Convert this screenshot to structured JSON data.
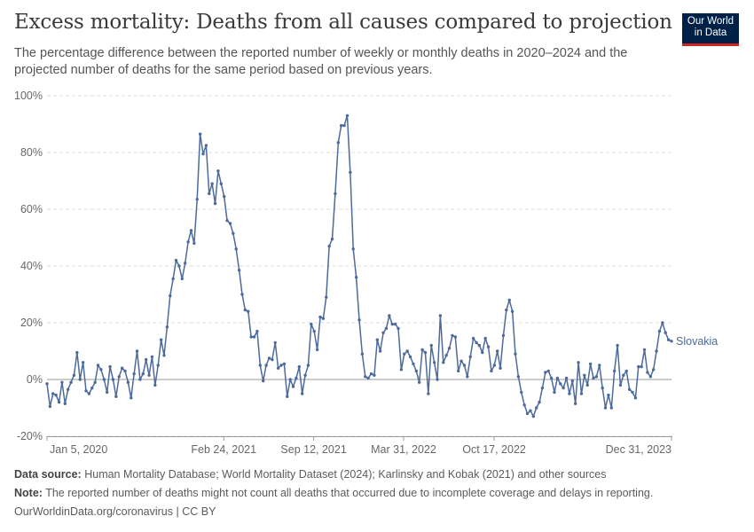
{
  "title": "Excess mortality: Deaths from all causes compared to projection",
  "subtitle": "The percentage difference between the reported number of weekly or monthly deaths in 2020–2024 and the projected number of deaths for the same period based on previous years.",
  "logo": {
    "line1": "Our World",
    "line2": "in Data"
  },
  "footer": {
    "source_label": "Data source:",
    "source_text": "Human Mortality Database; World Mortality Dataset (2024); Karlinsky and Kobak (2021) and other sources",
    "note_label": "Note:",
    "note_text": "The reported number of deaths might not count all deaths that occurred due to incomplete coverage and delays in reporting.",
    "credit": "OurWorldinData.org/coronavirus | CC BY"
  },
  "colors": {
    "series": "#4c6a9c",
    "grid": "#dddddd",
    "zero": "#999999"
  },
  "chart_data": {
    "type": "line",
    "ylim": [
      -20,
      100
    ],
    "yticks": [
      -20,
      0,
      20,
      40,
      60,
      80,
      100
    ],
    "ytick_labels": [
      "-20%",
      "0%",
      "20%",
      "40%",
      "60%",
      "80%",
      "100%"
    ],
    "xtick_labels": [
      "Jan 5, 2020",
      "Feb 24, 2021",
      "Sep 12, 2021",
      "Mar 31, 2022",
      "Oct 17, 2022",
      "Dec 31, 2023"
    ],
    "grid": "horizontal dashed",
    "series": [
      {
        "name": "Slovakia",
        "values": [
          -1.5,
          -9.5,
          -5,
          -5.5,
          -8,
          -1,
          -8.5,
          -3.5,
          -1,
          1.5,
          9.5,
          0,
          6,
          -4,
          -5,
          -3,
          -1,
          5,
          3.5,
          0,
          -4.5,
          4.5,
          0,
          -6,
          1,
          4,
          3,
          -1,
          -6.5,
          2,
          10,
          0,
          2,
          7,
          1.5,
          8,
          -2,
          5,
          14,
          8.5,
          18.5,
          29.5,
          35.5,
          42,
          40,
          35.5,
          41,
          48.5,
          52.5,
          48,
          63.5,
          86.5,
          79.5,
          82.5,
          65.5,
          69,
          62,
          73.5,
          69,
          64.5,
          56,
          55,
          51.5,
          46,
          38.5,
          30,
          24.5,
          24,
          15,
          15,
          17,
          5,
          -0.5,
          5,
          7.5,
          7,
          13,
          4,
          5,
          5.5,
          -6,
          0,
          -2.5,
          0.5,
          4.5,
          -5,
          1.5,
          5,
          19.5,
          17,
          10.5,
          22,
          21.5,
          29,
          47,
          49.5,
          65.5,
          83.5,
          89.5,
          89.5,
          93,
          73,
          46,
          36,
          21,
          9,
          1,
          0.5,
          2,
          1.5,
          14,
          10,
          16.5,
          18,
          22.5,
          19.5,
          19.5,
          18,
          3.5,
          9,
          10,
          8,
          5.5,
          3,
          -1,
          10.5,
          9.5,
          -5,
          12,
          6,
          0,
          22.5,
          6,
          8.5,
          11,
          15.5,
          15,
          3,
          6.5,
          5,
          1,
          8,
          14.5,
          13,
          12,
          9.5,
          14.5,
          11.5,
          3,
          5,
          10,
          4,
          15.5,
          24.5,
          28,
          24,
          9,
          1,
          -4.5,
          -9,
          -12,
          -11,
          -13,
          -10,
          -8,
          -3,
          2.5,
          3,
          0.5,
          -4.5,
          0.5,
          -1.5,
          -3,
          0.5,
          -5,
          -0.5,
          -8.5,
          6,
          -5,
          1.5,
          -2,
          5.5,
          0.5,
          1,
          5,
          -3,
          -10,
          -5.5,
          -10,
          3,
          12,
          -2,
          1.5,
          3,
          -3.5,
          -4.5,
          -6.5,
          4.5,
          4.5,
          10.5,
          2.5,
          1,
          3.5,
          10,
          17,
          20,
          16.5,
          14,
          13.5
        ]
      }
    ]
  }
}
